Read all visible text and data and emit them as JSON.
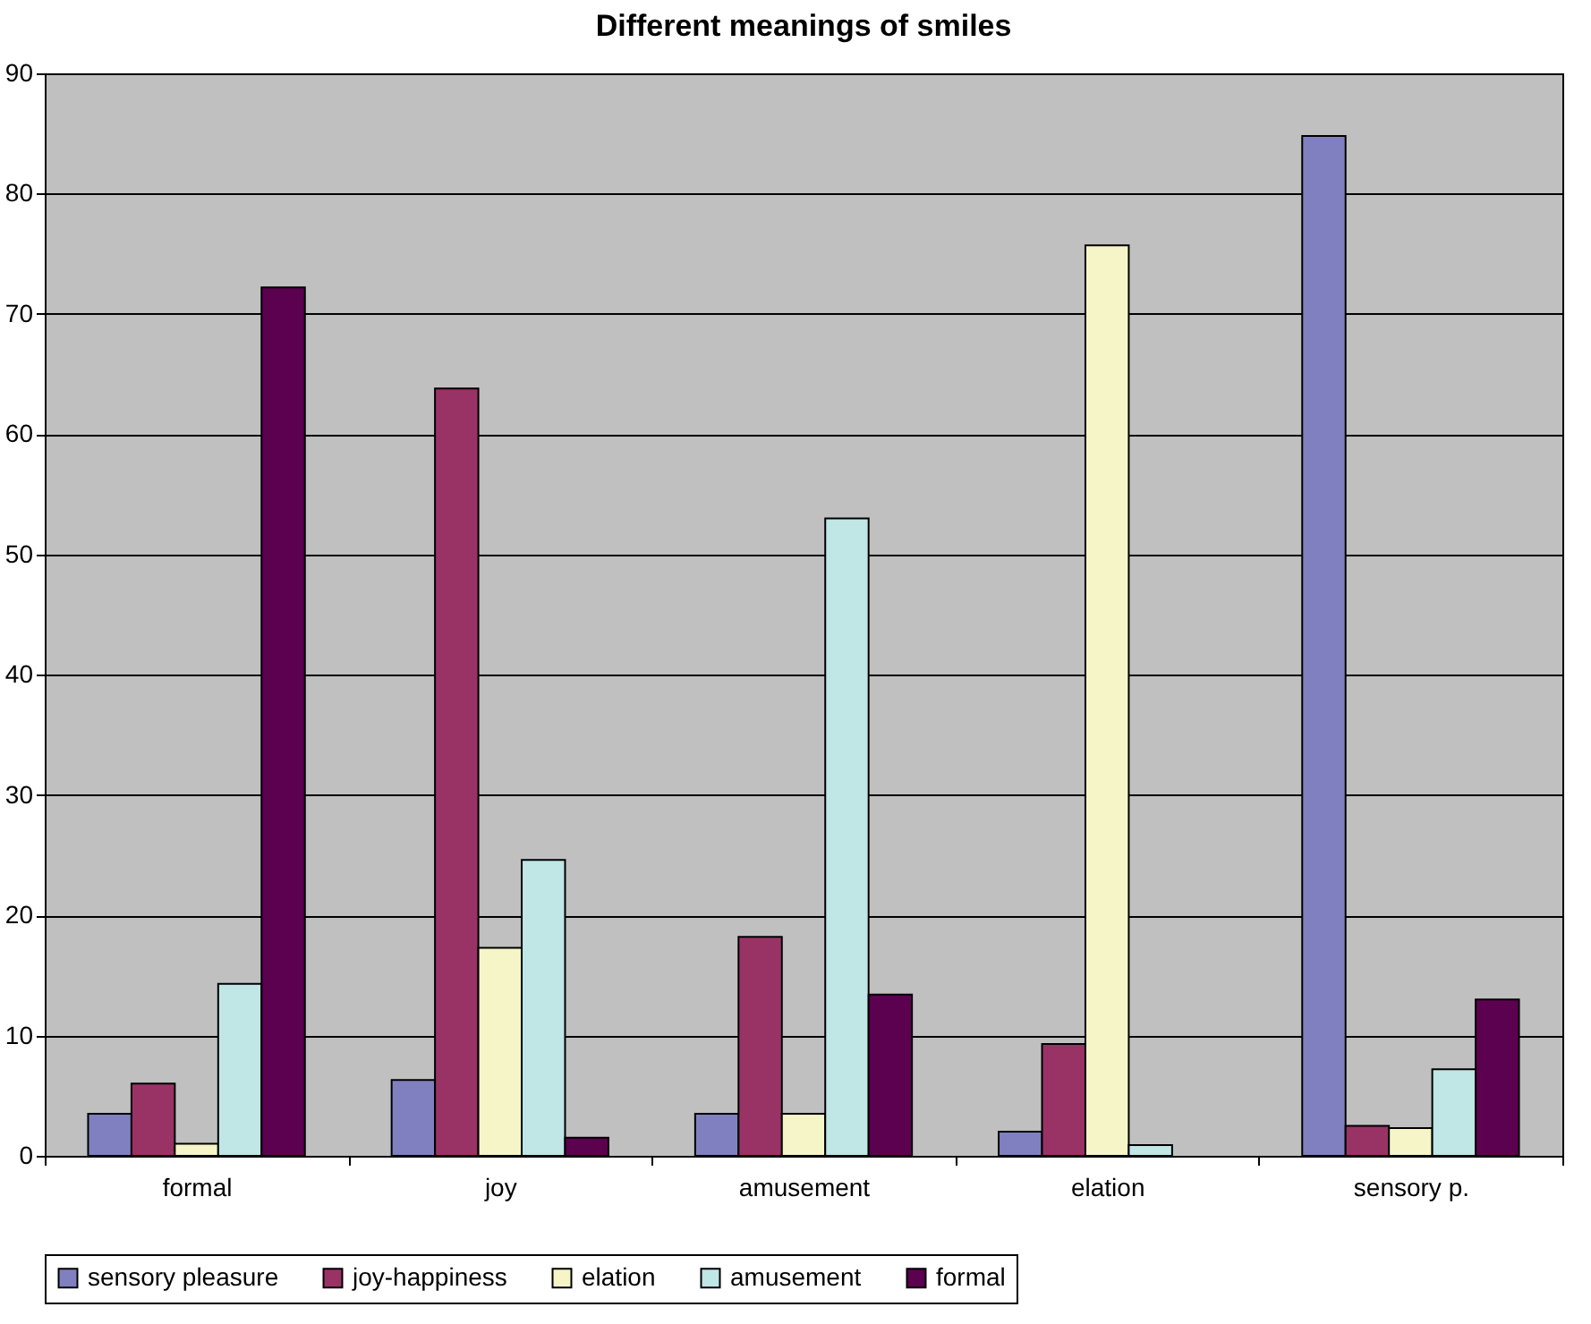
{
  "chart_data": {
    "type": "bar",
    "title": "Different meanings of smiles",
    "categories": [
      "formal",
      "joy",
      "amusement",
      "elation",
      "sensory p."
    ],
    "series": [
      {
        "name": "sensory pleasure",
        "color": "#8080c0",
        "values": [
          3.5,
          6.3,
          3.5,
          2,
          84.8
        ]
      },
      {
        "name": "joy-happiness",
        "color": "#993366",
        "values": [
          6,
          63.8,
          18.2,
          9.3,
          2.5
        ]
      },
      {
        "name": "elation",
        "color": "#f5f5c8",
        "values": [
          1,
          17.3,
          3.5,
          75.7,
          2.3
        ]
      },
      {
        "name": "amusement",
        "color": "#c0e6e6",
        "values": [
          14.3,
          24.6,
          53,
          0.9,
          7.2
        ]
      },
      {
        "name": "formal",
        "color": "#5c0050",
        "values": [
          72.2,
          1.5,
          13.4,
          null,
          13
        ]
      }
    ],
    "ylim": [
      0,
      90
    ],
    "yticks": [
      0,
      10,
      20,
      30,
      40,
      50,
      60,
      70,
      80,
      90
    ],
    "grid": "y",
    "legend": "bottom"
  }
}
